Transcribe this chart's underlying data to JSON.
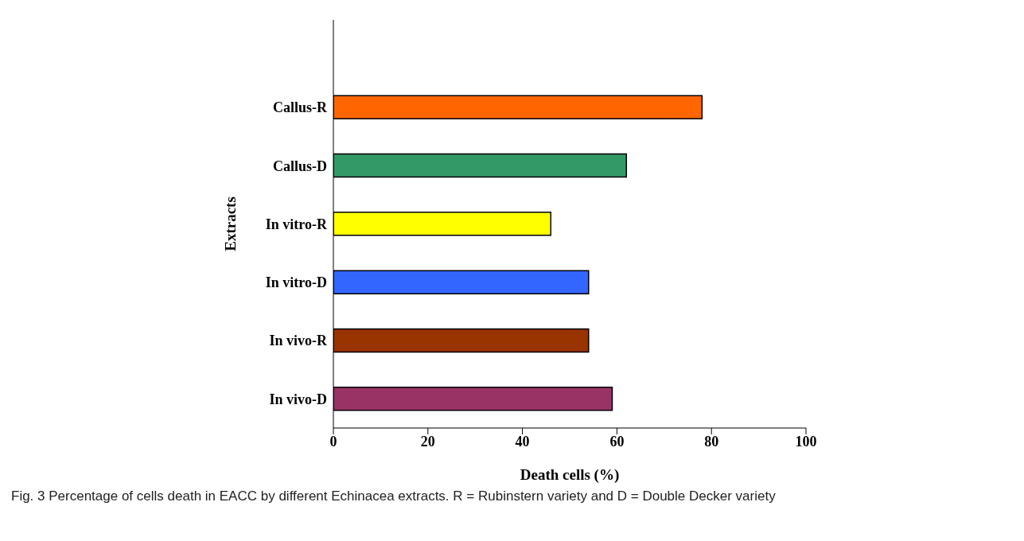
{
  "chart_data": {
    "type": "bar",
    "orientation": "horizontal",
    "xlabel": "Death cells (%)",
    "ylabel": "Extracts",
    "categories": [
      null,
      "Callus-R",
      "Callus-D",
      "In vitro-R",
      "In vitro-D",
      "In vivo-R",
      "In vivo-D"
    ],
    "values": [
      null,
      78,
      62,
      46,
      54,
      54,
      59
    ],
    "colors": [
      null,
      "#ff6600",
      "#339966",
      "#ffff00",
      "#3366ff",
      "#993300",
      "#993366"
    ],
    "xlim": [
      0,
      100
    ],
    "xticks": [
      0,
      20,
      40,
      60,
      80,
      100
    ],
    "grid": false,
    "legend": false,
    "annotations": [
      "Fig. 3 Percentage of cells death in EACC by different Echinacea extracts. R = Rubinstern variety and D = Double Decker variety"
    ]
  }
}
